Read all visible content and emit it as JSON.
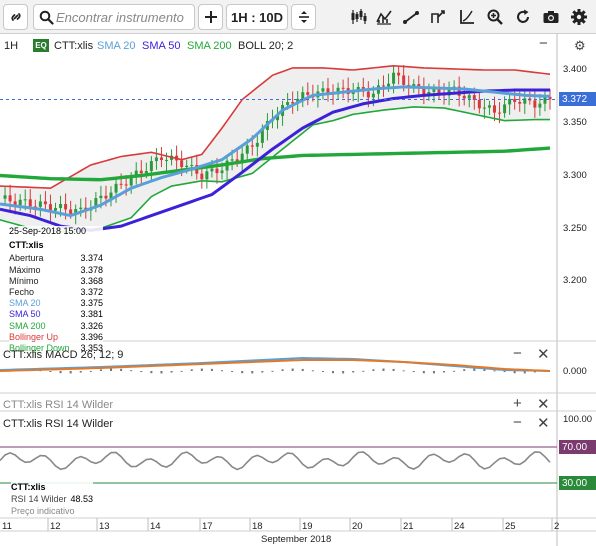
{
  "toolbar": {
    "search_placeholder": "Encontrar instrumento",
    "timeframe_label": "1H : 10D",
    "icons": [
      "link-icon",
      "search-icon",
      "add-icon",
      "arrows-vertical-icon",
      "candles-icon",
      "chart-type-icon",
      "line-draw-icon",
      "markers-icon",
      "axis-icon",
      "zoom-icon",
      "refresh-icon",
      "camera-icon",
      "settings-icon"
    ]
  },
  "main": {
    "timeframe": "1H",
    "eq_badge": "EQ",
    "symbol": "CTT:xlis",
    "indicators": [
      {
        "label": "SMA 20",
        "color": "#5aa0d8"
      },
      {
        "label": "SMA 50",
        "color": "#3b22d8"
      },
      {
        "label": "SMA 200",
        "color": "#22a83a"
      },
      {
        "label": "BOLL 20; 2",
        "color": "#222222"
      }
    ],
    "price_axis": [
      "3.400",
      "3.350",
      "3.300",
      "3.250",
      "3.200"
    ],
    "last_price": "3.372",
    "last_price_color": "#3b6fd8"
  },
  "tooltip": {
    "datetime": "25-Sep-2018 15:00",
    "symbol": "CTT:xlis",
    "rows": [
      {
        "label": "Abertura",
        "value": "3.374",
        "color": "#222222"
      },
      {
        "label": "Máximo",
        "value": "3.378",
        "color": "#222222"
      },
      {
        "label": "Mínimo",
        "value": "3.368",
        "color": "#222222"
      },
      {
        "label": "Fecho",
        "value": "3.372",
        "color": "#222222"
      },
      {
        "label": "SMA 20",
        "value": "3.375",
        "color": "#5aa0d8"
      },
      {
        "label": "SMA 50",
        "value": "3.381",
        "color": "#3b22d8"
      },
      {
        "label": "SMA 200",
        "value": "3.326",
        "color": "#22a83a"
      },
      {
        "label": "Bollinger Up",
        "value": "3.396",
        "color": "#d83a3a"
      },
      {
        "label": "Bollinger Down",
        "value": "3.353",
        "color": "#22a83a"
      }
    ]
  },
  "macd": {
    "title": "CTT:xlis  MACD 26; 12; 9",
    "axis_value": "0.000"
  },
  "rsi_collapsed": {
    "title": "CTT:xlis  RSI 14 Wilder"
  },
  "rsi": {
    "title": "CTT:xlis  RSI 14 Wilder",
    "axis": [
      "100.00",
      "70.00",
      "30.00"
    ],
    "upper": "70.00",
    "lower": "30.00",
    "tip_symbol": "CTT:xlis",
    "tip_label": "RSI 14 Wilder",
    "tip_value": "48.53",
    "tip_note": "Preço indicativo"
  },
  "x_axis": {
    "labels": [
      "11",
      "12",
      "13",
      "14",
      "17",
      "18",
      "19",
      "20",
      "21",
      "24",
      "25",
      "2"
    ],
    "month": "September 2018"
  }
}
